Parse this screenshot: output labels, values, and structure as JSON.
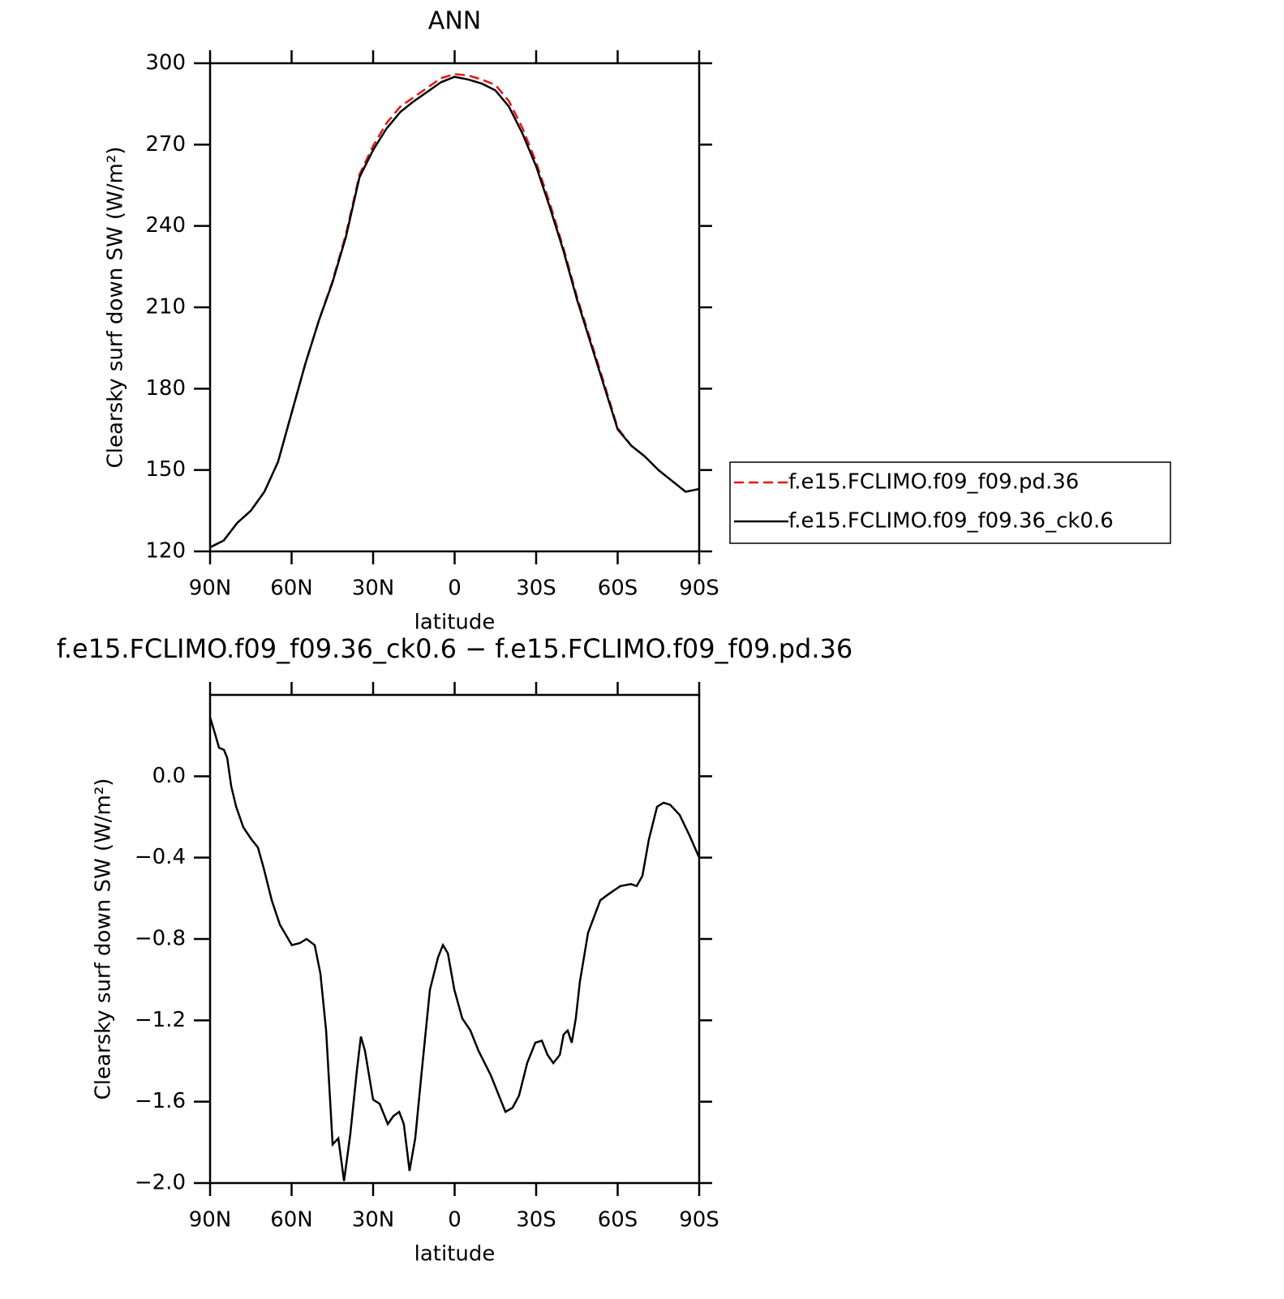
{
  "chart_data": [
    {
      "type": "line",
      "title": "ANN",
      "ylabel": "Clearsky surf down SW (W/m²)",
      "xlabel": "latitude",
      "x": [
        90,
        85,
        80,
        75,
        70,
        65,
        60,
        55,
        50,
        45,
        40,
        35,
        30,
        25,
        20,
        15,
        10,
        5,
        0,
        -5,
        -10,
        -15,
        -20,
        -25,
        -30,
        -35,
        -40,
        -45,
        -50,
        -55,
        -60,
        -65,
        -70,
        -75,
        -80,
        -85,
        -90
      ],
      "series": [
        {
          "name": "f.e15.FCLIMO.f09_f09.pd.36",
          "color": "#ee1111",
          "dashed": true,
          "values": [
            121.5,
            124,
            130.5,
            135,
            142,
            153,
            171,
            189,
            205,
            219.5,
            237,
            259,
            269.5,
            278,
            284,
            287.5,
            291,
            294.5,
            296,
            295.5,
            294,
            292,
            286,
            276,
            263.5,
            248.5,
            232,
            214,
            198,
            182,
            165.5,
            159,
            155,
            150,
            146,
            142,
            143
          ]
        },
        {
          "name": "f.e15.FCLIMO.f09_f09.36_ck0.6",
          "color": "#000000",
          "dashed": false,
          "values": [
            121.5,
            124,
            130.5,
            135,
            142,
            153,
            171,
            189,
            205,
            219,
            236,
            258,
            268,
            276,
            282,
            286,
            289.5,
            293,
            295,
            294,
            292.5,
            290,
            284,
            274,
            262,
            247,
            231,
            213,
            197,
            181,
            165,
            159,
            155,
            150,
            146,
            142,
            143
          ]
        }
      ],
      "xlim": [
        90,
        -90
      ],
      "xticks": [
        {
          "value": 90,
          "label": "90N"
        },
        {
          "value": 60,
          "label": "60N"
        },
        {
          "value": 30,
          "label": "30N"
        },
        0,
        {
          "value": -30,
          "label": "30S"
        },
        {
          "value": -60,
          "label": "60S"
        },
        {
          "value": -90,
          "label": "90S"
        }
      ],
      "ylim": [
        120,
        300
      ],
      "yticks": [
        120,
        150,
        180,
        210,
        240,
        270,
        300
      ]
    },
    {
      "type": "line",
      "title": "f.e15.FCLIMO.f09_f09.36_ck0.6 − f.e15.FCLIMO.f09_f09.pd.36",
      "ylabel": "Clearsky surf down SW (W/m²)",
      "xlabel": "latitude",
      "x": [
        90,
        88.2,
        86.7,
        84.9,
        83.7,
        82.2,
        80.4,
        77.8,
        74.8,
        72.4,
        70.3,
        67.3,
        64.3,
        59.9,
        56.9,
        54.5,
        51.5,
        49.4,
        47.3,
        44.9,
        42.8,
        40.7,
        38.4,
        36,
        34.5,
        33,
        30,
        27.6,
        24.6,
        22.5,
        20.4,
        18.7,
        16.6,
        14.5,
        12.1,
        9.1,
        6.1,
        4.3,
        2.5,
        0.1,
        -2.8,
        -5.8,
        -8.8,
        -13.3,
        -16.3,
        -18.7,
        -21.3,
        -23.7,
        -26.7,
        -29.7,
        -32.1,
        -34.2,
        -36.3,
        -38.7,
        -40.1,
        -41.6,
        -43.1,
        -44.6,
        -46.1,
        -49.1,
        -53.6,
        -56.6,
        -61,
        -64.9,
        -67,
        -69.1,
        -71.5,
        -74.5,
        -76.9,
        -79.3,
        -82.8,
        -86.4,
        -90
      ],
      "series": [
        {
          "name": "f.e15.FCLIMO.f09_f09.36_ck0.6 − f.e15.FCLIMO.f09_f09.pd.36",
          "color": "#000000",
          "dashed": false,
          "values": [
            0.29,
            0.21,
            0.14,
            0.13,
            0.09,
            -0.05,
            -0.15,
            -0.25,
            -0.31,
            -0.35,
            -0.45,
            -0.61,
            -0.73,
            -0.83,
            -0.82,
            -0.8,
            -0.83,
            -0.97,
            -1.25,
            -1.81,
            -1.78,
            -1.99,
            -1.76,
            -1.45,
            -1.28,
            -1.35,
            -1.59,
            -1.61,
            -1.71,
            -1.67,
            -1.65,
            -1.71,
            -1.94,
            -1.78,
            -1.45,
            -1.05,
            -0.89,
            -0.83,
            -0.87,
            -1.05,
            -1.19,
            -1.25,
            -1.35,
            -1.47,
            -1.57,
            -1.65,
            -1.63,
            -1.57,
            -1.41,
            -1.31,
            -1.3,
            -1.37,
            -1.41,
            -1.37,
            -1.27,
            -1.25,
            -1.31,
            -1.19,
            -1.01,
            -0.77,
            -0.61,
            -0.58,
            -0.54,
            -0.53,
            -0.54,
            -0.49,
            -0.31,
            -0.15,
            -0.13,
            -0.14,
            -0.19,
            -0.29,
            -0.4
          ]
        }
      ],
      "xlim": [
        90,
        -90
      ],
      "xticks": [
        {
          "value": 90,
          "label": "90N"
        },
        {
          "value": 60,
          "label": "60N"
        },
        {
          "value": 30,
          "label": "30N"
        },
        0,
        {
          "value": -30,
          "label": "30S"
        },
        {
          "value": -60,
          "label": "60S"
        },
        {
          "value": -90,
          "label": "90S"
        }
      ],
      "ylim": [
        -2.0,
        0.4
      ],
      "yticks": [
        {
          "value": -2.0,
          "label": "−2.0"
        },
        {
          "value": -1.6,
          "label": "−1.6"
        },
        {
          "value": -1.2,
          "label": "−1.2"
        },
        {
          "value": -0.8,
          "label": "−0.8"
        },
        {
          "value": -0.4,
          "label": "−0.4"
        },
        {
          "value": 0,
          "label": "0.0"
        }
      ]
    }
  ]
}
